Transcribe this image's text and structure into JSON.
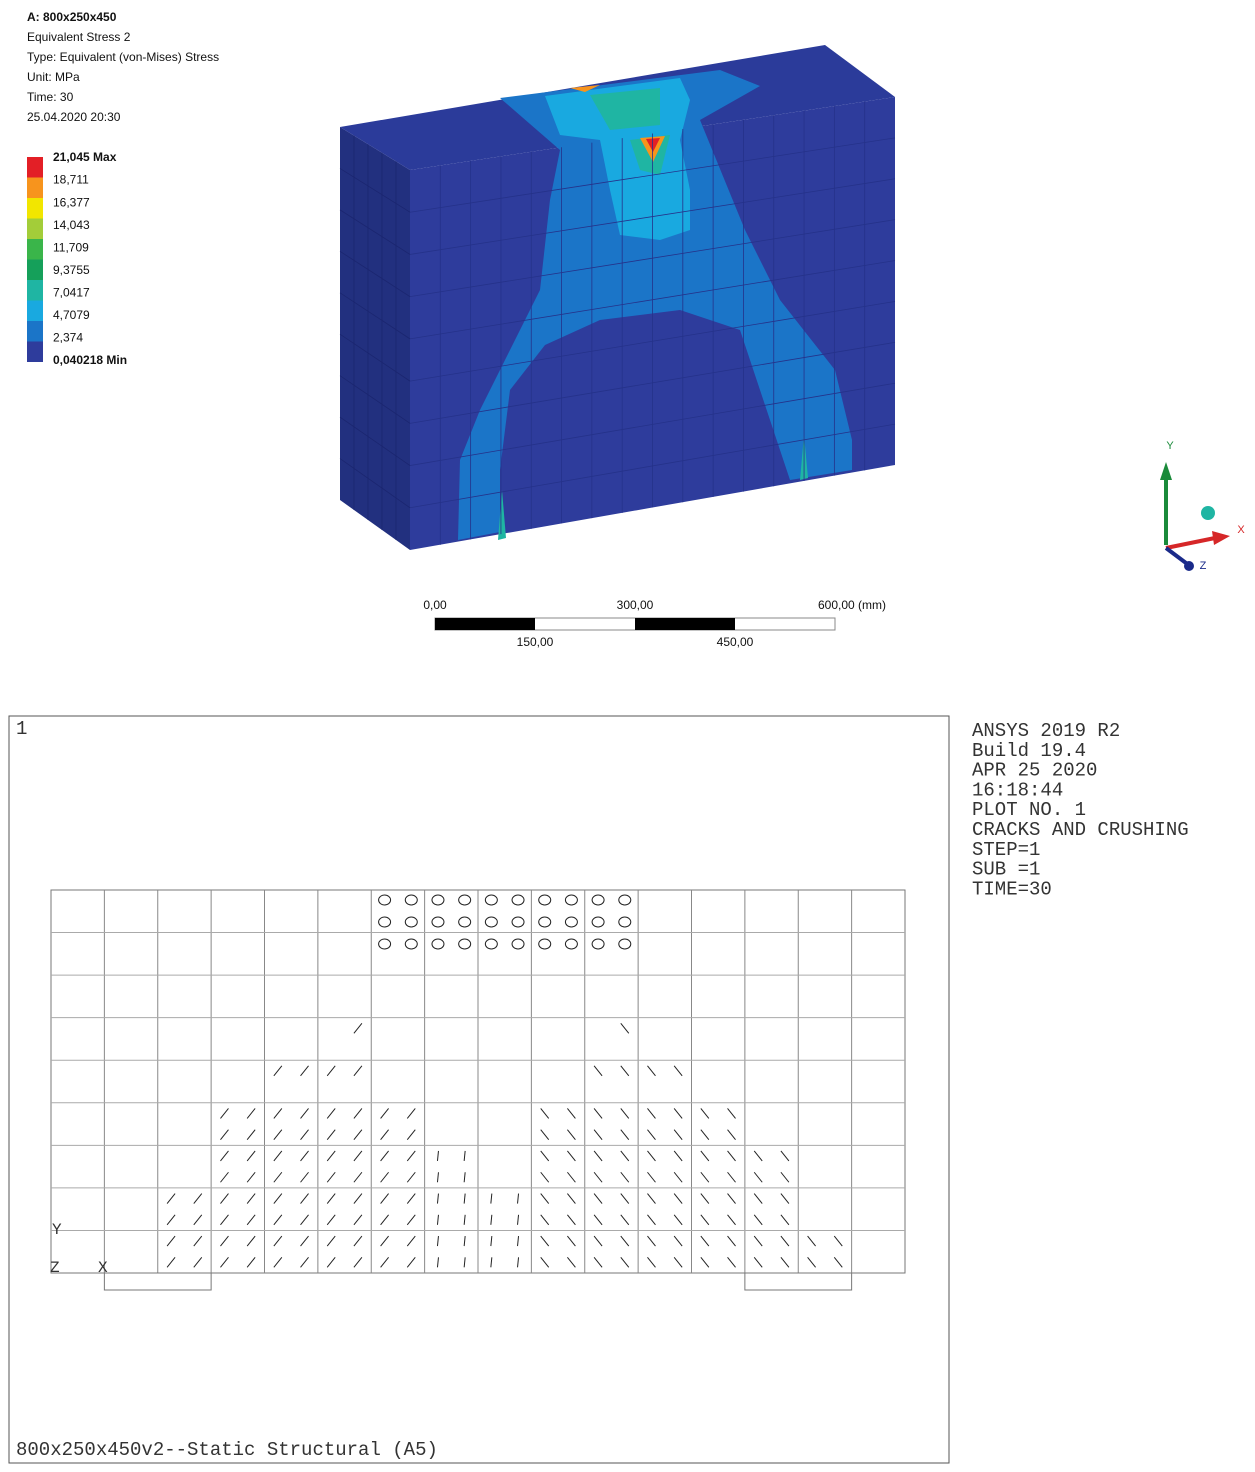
{
  "header": {
    "lines": [
      "A: 800x250x450",
      "Equivalent Stress 2",
      "Type: Equivalent (von-Mises) Stress",
      "Unit: MPa",
      "Time: 30",
      "25.04.2020 20:30"
    ]
  },
  "legend": {
    "items": [
      {
        "label": "21,045 Max",
        "color": "#e31f26"
      },
      {
        "label": "18,711",
        "color": "#f7941d"
      },
      {
        "label": "16,377",
        "color": "#f2e600"
      },
      {
        "label": "14,043",
        "color": "#a3cd39"
      },
      {
        "label": "11,709",
        "color": "#3ab54a"
      },
      {
        "label": "9,3755",
        "color": "#15a05a"
      },
      {
        "label": "7,0417",
        "color": "#1fb5a3"
      },
      {
        "label": "4,7079",
        "color": "#19a9e0"
      },
      {
        "label": "2,374",
        "color": "#1b75c8"
      },
      {
        "label": "0,040218 Min",
        "color": "#2e3c9c"
      }
    ]
  },
  "scale_bar": {
    "top_labels": [
      "0,00",
      "300,00",
      "600,00 (mm)"
    ],
    "bottom_labels": [
      "150,00",
      "450,00"
    ]
  },
  "triad": {
    "y": "Y",
    "x": "X",
    "z": "Z"
  },
  "plot": {
    "window": "1",
    "info": [
      "ANSYS 2019 R2",
      "Build 19.4",
      "APR 25 2020",
      "16:18:44",
      "PLOT NO.    1",
      "CRACKS AND CRUSHING",
      "STEP=1",
      "SUB =1",
      "TIME=30"
    ],
    "footer": "800x250x450v2--Static Structural (A5)",
    "triad": {
      "y": "Y",
      "z": "Z",
      "x": "X"
    }
  }
}
